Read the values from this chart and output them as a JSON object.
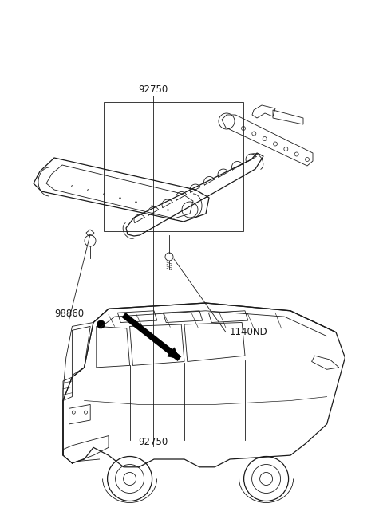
{
  "background_color": "#ffffff",
  "color": "#1a1a1a",
  "fig_width": 4.8,
  "fig_height": 6.56,
  "dpi": 100,
  "label_92750": [
    0.4,
    0.845
  ],
  "label_1140ND": [
    0.6,
    0.635
  ],
  "label_98860": [
    0.18,
    0.6
  ],
  "label_fontsize": 8.5
}
